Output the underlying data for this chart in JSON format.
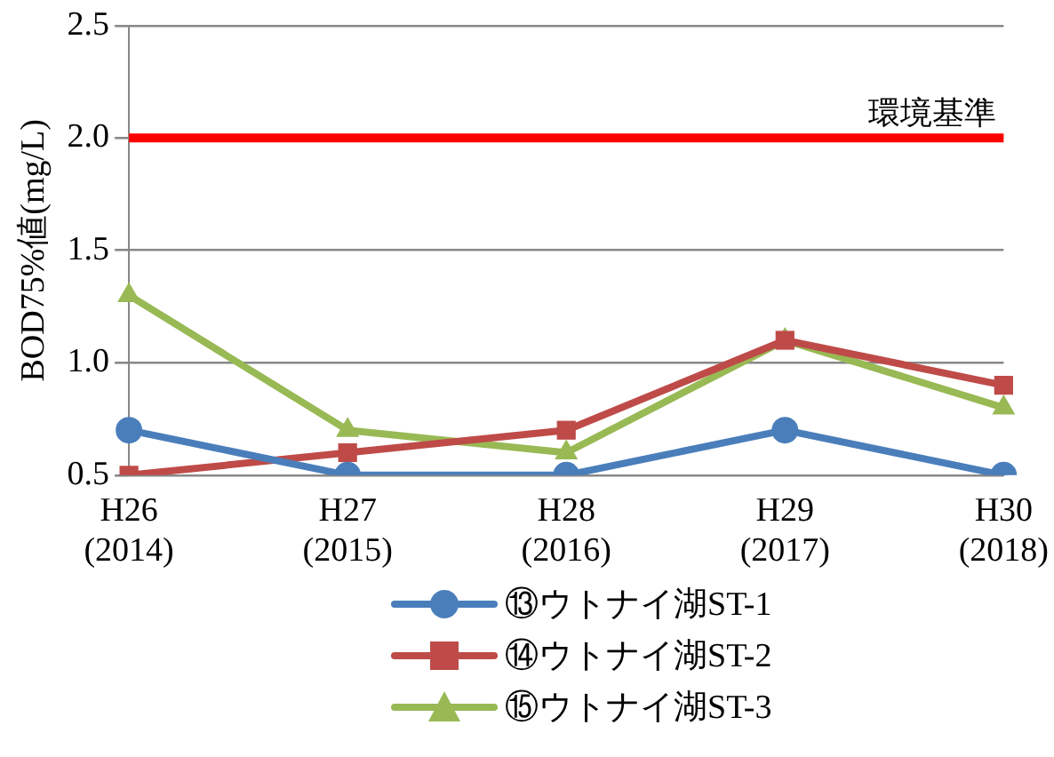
{
  "chart_data": {
    "type": "line",
    "ylabel": "BOD75%値(mg/L)",
    "categories": [
      "H26\n(2014)",
      "H27\n(2015)",
      "H28\n(2016)",
      "H29\n(2017)",
      "H30\n(2018)"
    ],
    "series": [
      {
        "name": "⑬ウトナイ湖ST-1",
        "color": "#4a7ebb",
        "marker": "circle",
        "values": [
          0.7,
          0.5,
          0.5,
          0.7,
          0.5
        ]
      },
      {
        "name": "⑭ウトナイ湖ST-2",
        "color": "#be4b48",
        "marker": "square",
        "values": [
          0.5,
          0.6,
          0.7,
          1.1,
          0.9
        ]
      },
      {
        "name": "⑮ウトナイ湖ST-3",
        "color": "#98b954",
        "marker": "triangle",
        "values": [
          1.3,
          0.7,
          0.6,
          1.1,
          0.8
        ]
      }
    ],
    "ylim": [
      0.5,
      2.5
    ],
    "yticks": [
      {
        "value": 0.5,
        "label": "0.5"
      },
      {
        "value": 1,
        "label": "1.0"
      },
      {
        "value": 1.5,
        "label": "1.5"
      },
      {
        "value": 2,
        "label": "2.0"
      },
      {
        "value": 2.5,
        "label": "2.5"
      }
    ],
    "ref_lines": [
      {
        "axis": "y",
        "value": 2,
        "label": "環境基準",
        "color": "#ff0000"
      }
    ],
    "grid": "y",
    "legend": "bottom",
    "line_style": "solid"
  }
}
